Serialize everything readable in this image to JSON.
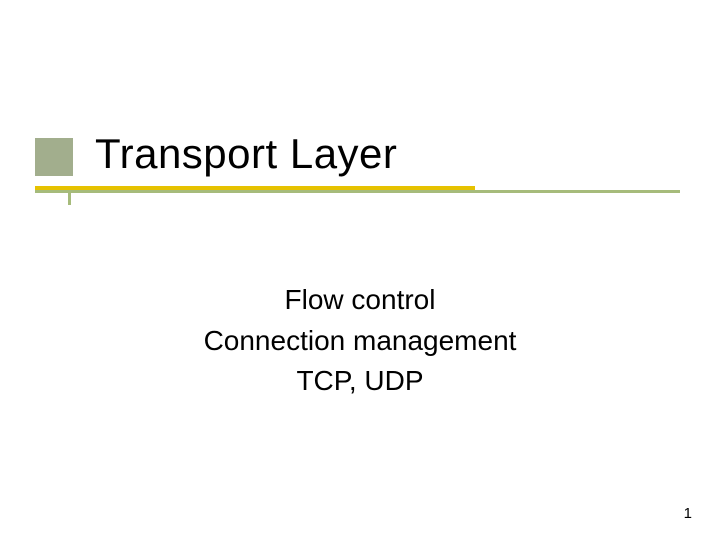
{
  "slide": {
    "title": "Transport Layer",
    "subtitle_lines": [
      "Flow control",
      "Connection management",
      "TCP, UDP"
    ],
    "page_number": "1"
  },
  "style": {
    "background_color": "#ffffff",
    "title_fontsize": 42,
    "title_color": "#000000",
    "subtitle_fontsize": 28,
    "subtitle_color": "#000000",
    "accent_block_color": "#556b2f",
    "accent_block_opacity": 0.55,
    "underline_primary_color": "#e6c200",
    "underline_secondary_color": "#6b8e23",
    "underline_secondary_opacity": 0.6,
    "page_number_fontsize": 15,
    "font_family": "Verdana"
  }
}
